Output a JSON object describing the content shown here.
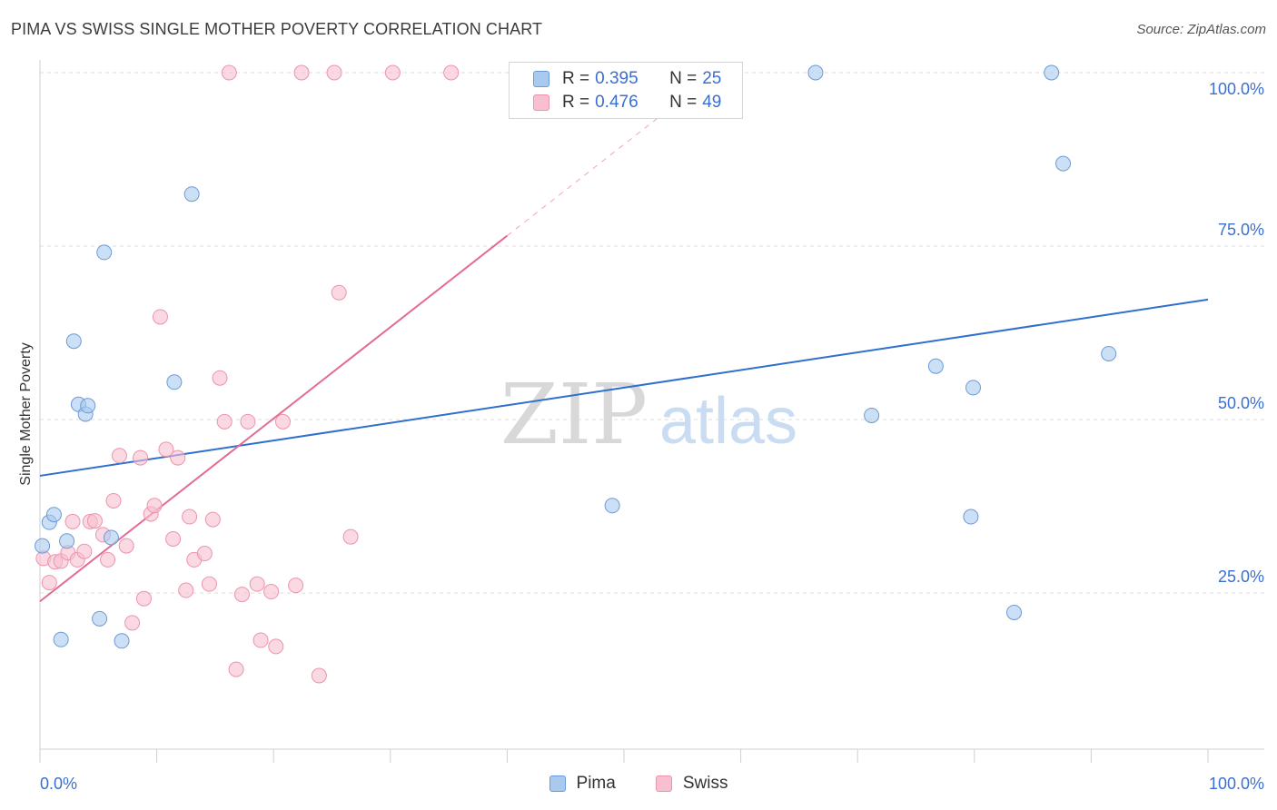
{
  "title": "PIMA VS SWISS SINGLE MOTHER POVERTY CORRELATION CHART",
  "source": "Source: ZipAtlas.com",
  "watermark": {
    "zip": "ZIP",
    "atlas": "atlas"
  },
  "legend": {
    "rows": [
      {
        "r_label": "R =",
        "r_value": "0.395",
        "n_label": "N =",
        "n_value": "25"
      },
      {
        "r_label": "R =",
        "r_value": "0.476",
        "n_label": "N =",
        "n_value": "49"
      }
    ]
  },
  "colors": {
    "pima_fill": "#a9c9ee",
    "pima_stroke": "#6d9ad8",
    "pima_line": "#2f6fcf",
    "swiss_fill": "#f7bfcf",
    "swiss_stroke": "#ec93ad",
    "swiss_line": "#e56a93",
    "tick_text": "#3a6fd1",
    "grid": "#dddddd"
  },
  "chart_data": {
    "type": "scatter",
    "title": "PIMA VS SWISS SINGLE MOTHER POVERTY CORRELATION CHART",
    "xlabel": "",
    "ylabel": "Single Mother Poverty",
    "xlim": [
      0,
      100
    ],
    "ylim": [
      0,
      102
    ],
    "x_tick_labels": [
      "0.0%",
      "100.0%"
    ],
    "y_ticks": [
      25,
      50,
      75,
      100
    ],
    "y_tick_labels": [
      "25.0%",
      "50.0%",
      "75.0%",
      "100.0%"
    ],
    "legend_position": "top-center",
    "series": [
      {
        "name": "Pima",
        "r": 0.395,
        "n": 25,
        "trend": {
          "x0": 0,
          "y0": 41.9,
          "x1": 100,
          "y1": 67.3
        },
        "points": [
          [
            0.2,
            31.8
          ],
          [
            0.8,
            35.2
          ],
          [
            1.2,
            36.3
          ],
          [
            1.8,
            18.3
          ],
          [
            2.3,
            32.5
          ],
          [
            2.9,
            61.3
          ],
          [
            3.3,
            52.2
          ],
          [
            3.9,
            50.8
          ],
          [
            4.1,
            52.0
          ],
          [
            5.1,
            21.3
          ],
          [
            5.5,
            74.1
          ],
          [
            6.1,
            33.0
          ],
          [
            7.0,
            18.1
          ],
          [
            11.5,
            55.4
          ],
          [
            13.0,
            82.5
          ],
          [
            49.0,
            37.6
          ],
          [
            66.4,
            100.0
          ],
          [
            71.2,
            50.6
          ],
          [
            76.7,
            57.7
          ],
          [
            79.9,
            54.6
          ],
          [
            79.7,
            36.0
          ],
          [
            83.4,
            22.2
          ],
          [
            86.6,
            100.0
          ],
          [
            87.6,
            86.9
          ],
          [
            91.5,
            59.5
          ]
        ]
      },
      {
        "name": "Swiss",
        "r": 0.476,
        "n": 49,
        "trend": {
          "x0": 0,
          "y0": 23.8,
          "x1": 40,
          "y1": 76.5,
          "dash_x1": 53,
          "dash_y1": 93.6
        },
        "points": [
          [
            0.3,
            30.0
          ],
          [
            0.8,
            26.5
          ],
          [
            1.3,
            29.5
          ],
          [
            1.8,
            29.6
          ],
          [
            2.4,
            30.8
          ],
          [
            2.8,
            35.3
          ],
          [
            3.2,
            29.8
          ],
          [
            3.8,
            31.0
          ],
          [
            4.3,
            35.3
          ],
          [
            4.7,
            35.4
          ],
          [
            5.4,
            33.4
          ],
          [
            5.8,
            29.8
          ],
          [
            6.3,
            38.3
          ],
          [
            6.8,
            44.8
          ],
          [
            7.4,
            31.8
          ],
          [
            7.9,
            20.7
          ],
          [
            8.6,
            44.5
          ],
          [
            8.9,
            24.2
          ],
          [
            9.5,
            36.4
          ],
          [
            9.8,
            37.6
          ],
          [
            10.3,
            64.8
          ],
          [
            10.8,
            45.7
          ],
          [
            11.4,
            32.8
          ],
          [
            11.8,
            44.5
          ],
          [
            12.5,
            25.4
          ],
          [
            12.8,
            36.0
          ],
          [
            13.2,
            29.8
          ],
          [
            14.1,
            30.7
          ],
          [
            14.5,
            26.3
          ],
          [
            14.8,
            35.6
          ],
          [
            15.4,
            56.0
          ],
          [
            15.8,
            49.7
          ],
          [
            16.2,
            100.0
          ],
          [
            16.8,
            14.0
          ],
          [
            17.3,
            24.8
          ],
          [
            17.8,
            49.7
          ],
          [
            18.6,
            26.3
          ],
          [
            18.9,
            18.2
          ],
          [
            19.8,
            25.2
          ],
          [
            20.2,
            17.3
          ],
          [
            20.8,
            49.7
          ],
          [
            21.9,
            26.1
          ],
          [
            22.4,
            100.0
          ],
          [
            23.9,
            13.1
          ],
          [
            25.2,
            100.0
          ],
          [
            25.6,
            68.3
          ],
          [
            26.6,
            33.1
          ],
          [
            30.2,
            100.0
          ],
          [
            35.2,
            100.0
          ]
        ]
      }
    ]
  },
  "bottom_legend": [
    "Pima",
    "Swiss"
  ]
}
